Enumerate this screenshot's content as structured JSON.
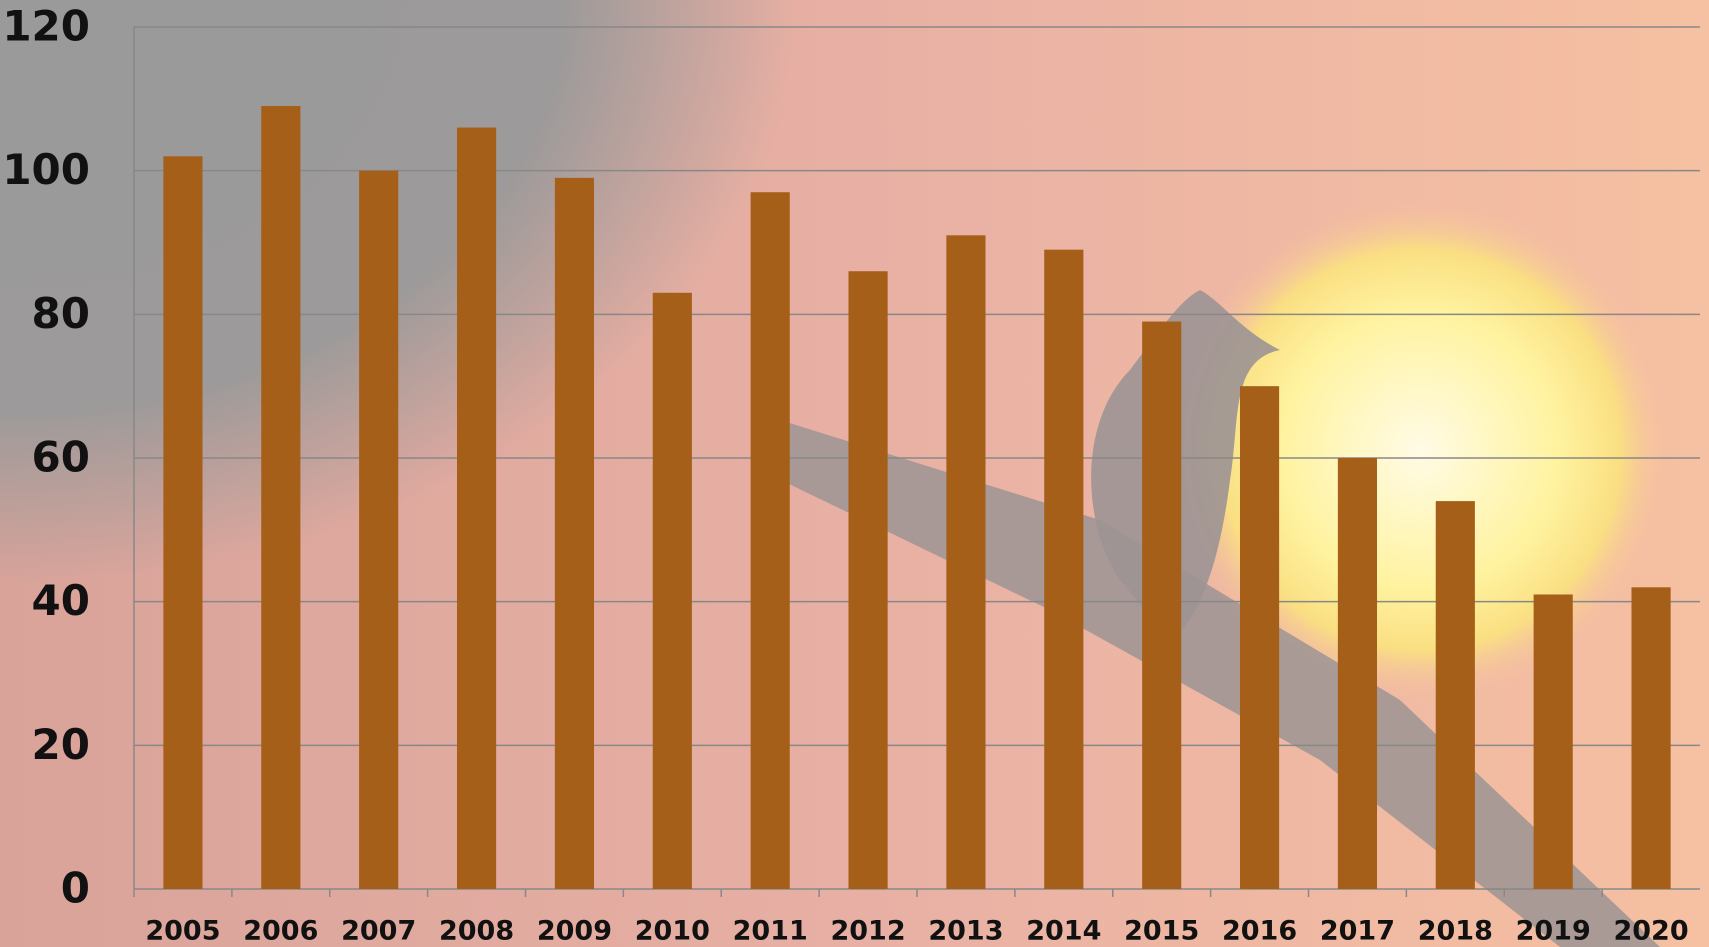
{
  "chart_data": {
    "type": "bar",
    "categories": [
      "2005",
      "2006",
      "2007",
      "2008",
      "2009",
      "2010",
      "2011",
      "2012",
      "2013",
      "2014",
      "2015",
      "2016",
      "2017",
      "2018",
      "2019",
      "2020"
    ],
    "values": [
      102,
      109,
      100,
      106,
      99,
      83,
      97,
      86,
      91,
      89,
      79,
      70,
      60,
      54,
      41,
      42
    ],
    "color": "#a65f18",
    "ylim": [
      0,
      120
    ],
    "yticks": [
      0,
      20,
      40,
      60,
      80,
      100,
      120
    ],
    "grid": true
  }
}
